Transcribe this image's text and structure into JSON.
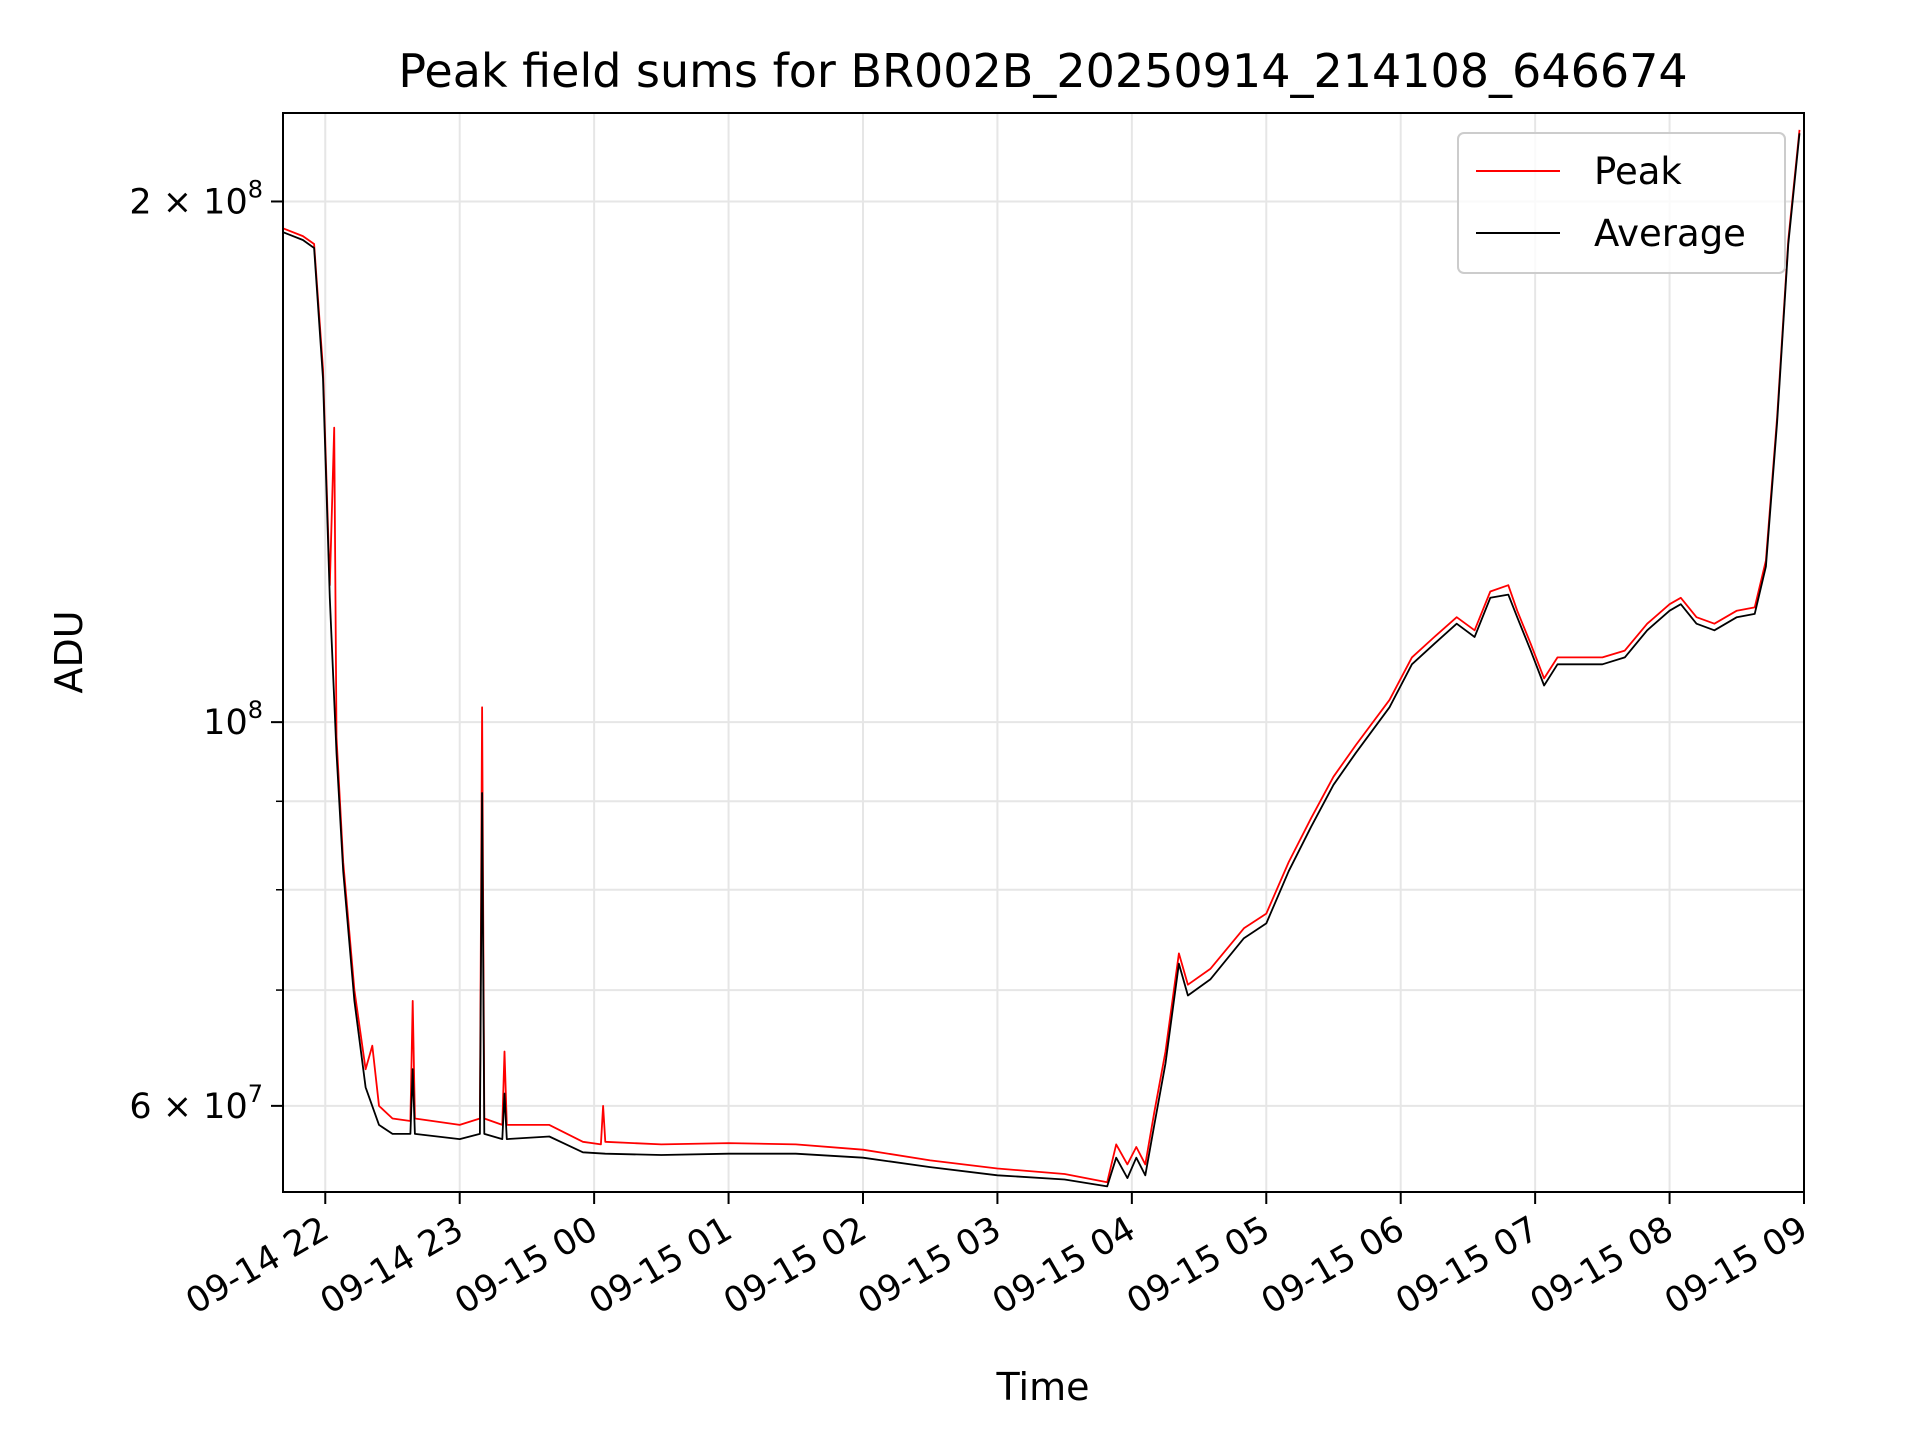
{
  "chart_data": {
    "type": "line",
    "title": "Peak field sums for BR002B_20250914_214108_646674",
    "xlabel": "Time",
    "ylabel": "ADU",
    "y_scale": "log",
    "grid": true,
    "legend_position": "top-right",
    "x_range": [
      "2025-09-14T21:41:08",
      "2025-09-15T09:00:00"
    ],
    "ylim": [
      53500000,
      225000000
    ],
    "x_ticks": [
      {
        "t": "2025-09-14T22:00",
        "label": "09-14 22"
      },
      {
        "t": "2025-09-14T23:00",
        "label": "09-14 23"
      },
      {
        "t": "2025-09-15T00:00",
        "label": "09-15 00"
      },
      {
        "t": "2025-09-15T01:00",
        "label": "09-15 01"
      },
      {
        "t": "2025-09-15T02:00",
        "label": "09-15 02"
      },
      {
        "t": "2025-09-15T03:00",
        "label": "09-15 03"
      },
      {
        "t": "2025-09-15T04:00",
        "label": "09-15 04"
      },
      {
        "t": "2025-09-15T05:00",
        "label": "09-15 05"
      },
      {
        "t": "2025-09-15T06:00",
        "label": "09-15 06"
      },
      {
        "t": "2025-09-15T07:00",
        "label": "09-15 07"
      },
      {
        "t": "2025-09-15T08:00",
        "label": "09-15 08"
      },
      {
        "t": "2025-09-15T09:00",
        "label": "09-15 09"
      }
    ],
    "y_major_ticks": [
      {
        "value": 60000000,
        "mantissa": "6",
        "exp": "7"
      },
      {
        "value": 100000000,
        "mantissa": "",
        "exp": "8"
      },
      {
        "value": 200000000,
        "mantissa": "2",
        "exp": "8"
      }
    ],
    "y_minor_ticks": [
      70000000,
      80000000,
      90000000
    ],
    "series": [
      {
        "name": "Peak",
        "color": "#ff0000",
        "points": [
          [
            "2025-09-14T21:41",
            193000000.0
          ],
          [
            "2025-09-14T21:50",
            191000000.0
          ],
          [
            "2025-09-14T21:55",
            189000000.0
          ],
          [
            "2025-09-14T21:59",
            160000000.0
          ],
          [
            "2025-09-14T22:02",
            120000000.0
          ],
          [
            "2025-09-14T22:04",
            148000000.0
          ],
          [
            "2025-09-14T22:05",
            98000000.0
          ],
          [
            "2025-09-14T22:08",
            83000000.0
          ],
          [
            "2025-09-14T22:13",
            70000000.0
          ],
          [
            "2025-09-14T22:18",
            63000000.0
          ],
          [
            "2025-09-14T22:21",
            65000000.0
          ],
          [
            "2025-09-14T22:24",
            60000000.0
          ],
          [
            "2025-09-14T22:30",
            59000000.0
          ],
          [
            "2025-09-14T22:38",
            58800000.0
          ],
          [
            "2025-09-14T22:39",
            69000000.0
          ],
          [
            "2025-09-14T22:40",
            59000000.0
          ],
          [
            "2025-09-14T23:00",
            58500000.0
          ],
          [
            "2025-09-14T23:09",
            59000000.0
          ],
          [
            "2025-09-14T23:10",
            102000000.0
          ],
          [
            "2025-09-14T23:11",
            59000000.0
          ],
          [
            "2025-09-14T23:19",
            58500000.0
          ],
          [
            "2025-09-14T23:20",
            64500000.0
          ],
          [
            "2025-09-14T23:21",
            58500000.0
          ],
          [
            "2025-09-14T23:40",
            58500000.0
          ],
          [
            "2025-09-14T23:55",
            57200000.0
          ],
          [
            "2025-09-15T00:03",
            57000000.0
          ],
          [
            "2025-09-15T00:04",
            60000000.0
          ],
          [
            "2025-09-15T00:05",
            57200000.0
          ],
          [
            "2025-09-15T00:30",
            57000000.0
          ],
          [
            "2025-09-15T01:00",
            57100000.0
          ],
          [
            "2025-09-15T01:30",
            57000000.0
          ],
          [
            "2025-09-15T02:00",
            56600000.0
          ],
          [
            "2025-09-15T02:30",
            55800000.0
          ],
          [
            "2025-09-15T03:00",
            55200000.0
          ],
          [
            "2025-09-15T03:30",
            54800000.0
          ],
          [
            "2025-09-15T03:49",
            54200000.0
          ],
          [
            "2025-09-15T03:53",
            57000000.0
          ],
          [
            "2025-09-15T03:58",
            55500000.0
          ],
          [
            "2025-09-15T04:02",
            56800000.0
          ],
          [
            "2025-09-15T04:06",
            55500000.0
          ],
          [
            "2025-09-15T04:10",
            59500000.0
          ],
          [
            "2025-09-15T04:15",
            64500000.0
          ],
          [
            "2025-09-15T04:21",
            73500000.0
          ],
          [
            "2025-09-15T04:25",
            70500000.0
          ],
          [
            "2025-09-15T04:35",
            72000000.0
          ],
          [
            "2025-09-15T04:50",
            76000000.0
          ],
          [
            "2025-09-15T05:00",
            77500000.0
          ],
          [
            "2025-09-15T05:10",
            83000000.0
          ],
          [
            "2025-09-15T05:20",
            88000000.0
          ],
          [
            "2025-09-15T05:30",
            93000000.0
          ],
          [
            "2025-09-15T05:40",
            97000000.0
          ],
          [
            "2025-09-15T05:55",
            103000000.0
          ],
          [
            "2025-09-15T06:05",
            109000000.0
          ],
          [
            "2025-09-15T06:15",
            112000000.0
          ],
          [
            "2025-09-15T06:25",
            115000000.0
          ],
          [
            "2025-09-15T06:33",
            113000000.0
          ],
          [
            "2025-09-15T06:40",
            119000000.0
          ],
          [
            "2025-09-15T06:48",
            120000000.0
          ],
          [
            "2025-09-15T06:52",
            116000000.0
          ],
          [
            "2025-09-15T06:58",
            111000000.0
          ],
          [
            "2025-09-15T07:04",
            106000000.0
          ],
          [
            "2025-09-15T07:10",
            109000000.0
          ],
          [
            "2025-09-15T07:20",
            109000000.0
          ],
          [
            "2025-09-15T07:30",
            109000000.0
          ],
          [
            "2025-09-15T07:40",
            110000000.0
          ],
          [
            "2025-09-15T07:50",
            114000000.0
          ],
          [
            "2025-09-15T08:00",
            117000000.0
          ],
          [
            "2025-09-15T08:05",
            118000000.0
          ],
          [
            "2025-09-15T08:12",
            115000000.0
          ],
          [
            "2025-09-15T08:20",
            114000000.0
          ],
          [
            "2025-09-15T08:30",
            116000000.0
          ],
          [
            "2025-09-15T08:38",
            116500000.0
          ],
          [
            "2025-09-15T08:43",
            124000000.0
          ],
          [
            "2025-09-15T08:48",
            150000000.0
          ],
          [
            "2025-09-15T08:53",
            190000000.0
          ],
          [
            "2025-09-15T08:58",
            220000000.0
          ]
        ]
      },
      {
        "name": "Average",
        "color": "#000000",
        "points": [
          [
            "2025-09-14T21:41",
            192000000.0
          ],
          [
            "2025-09-14T21:50",
            190000000.0
          ],
          [
            "2025-09-14T21:55",
            188000000.0
          ],
          [
            "2025-09-14T21:59",
            158000000.0
          ],
          [
            "2025-09-14T22:02",
            118000000.0
          ],
          [
            "2025-09-14T22:05",
            96000000.0
          ],
          [
            "2025-09-14T22:08",
            82000000.0
          ],
          [
            "2025-09-14T22:13",
            69000000.0
          ],
          [
            "2025-09-14T22:18",
            61500000.0
          ],
          [
            "2025-09-14T22:24",
            58500000.0
          ],
          [
            "2025-09-14T22:30",
            57800000.0
          ],
          [
            "2025-09-14T22:38",
            57800000.0
          ],
          [
            "2025-09-14T22:39",
            63000000.0
          ],
          [
            "2025-09-14T22:40",
            57800000.0
          ],
          [
            "2025-09-14T23:00",
            57400000.0
          ],
          [
            "2025-09-14T23:09",
            57800000.0
          ],
          [
            "2025-09-14T23:10",
            91000000.0
          ],
          [
            "2025-09-14T23:11",
            57800000.0
          ],
          [
            "2025-09-14T23:19",
            57400000.0
          ],
          [
            "2025-09-14T23:20",
            61000000.0
          ],
          [
            "2025-09-14T23:21",
            57400000.0
          ],
          [
            "2025-09-14T23:40",
            57600000.0
          ],
          [
            "2025-09-14T23:55",
            56400000.0
          ],
          [
            "2025-09-15T00:05",
            56300000.0
          ],
          [
            "2025-09-15T00:30",
            56200000.0
          ],
          [
            "2025-09-15T01:00",
            56300000.0
          ],
          [
            "2025-09-15T01:30",
            56300000.0
          ],
          [
            "2025-09-15T02:00",
            56000000.0
          ],
          [
            "2025-09-15T02:30",
            55300000.0
          ],
          [
            "2025-09-15T03:00",
            54700000.0
          ],
          [
            "2025-09-15T03:30",
            54400000.0
          ],
          [
            "2025-09-15T03:49",
            53900000.0
          ],
          [
            "2025-09-15T03:53",
            56000000.0
          ],
          [
            "2025-09-15T03:58",
            54500000.0
          ],
          [
            "2025-09-15T04:02",
            56000000.0
          ],
          [
            "2025-09-15T04:06",
            54700000.0
          ],
          [
            "2025-09-15T04:10",
            58500000.0
          ],
          [
            "2025-09-15T04:15",
            63500000.0
          ],
          [
            "2025-09-15T04:21",
            72500000.0
          ],
          [
            "2025-09-15T04:25",
            69500000.0
          ],
          [
            "2025-09-15T04:35",
            71000000.0
          ],
          [
            "2025-09-15T04:50",
            75000000.0
          ],
          [
            "2025-09-15T05:00",
            76500000.0
          ],
          [
            "2025-09-15T05:10",
            82000000.0
          ],
          [
            "2025-09-15T05:20",
            87000000.0
          ],
          [
            "2025-09-15T05:30",
            92000000.0
          ],
          [
            "2025-09-15T05:40",
            96000000.0
          ],
          [
            "2025-09-15T05:55",
            102000000.0
          ],
          [
            "2025-09-15T06:05",
            108000000.0
          ],
          [
            "2025-09-15T06:15",
            111000000.0
          ],
          [
            "2025-09-15T06:25",
            114000000.0
          ],
          [
            "2025-09-15T06:33",
            112000000.0
          ],
          [
            "2025-09-15T06:40",
            118000000.0
          ],
          [
            "2025-09-15T06:48",
            118500000.0
          ],
          [
            "2025-09-15T06:52",
            115000000.0
          ],
          [
            "2025-09-15T06:58",
            110000000.0
          ],
          [
            "2025-09-15T07:04",
            105000000.0
          ],
          [
            "2025-09-15T07:10",
            108000000.0
          ],
          [
            "2025-09-15T07:20",
            108000000.0
          ],
          [
            "2025-09-15T07:30",
            108000000.0
          ],
          [
            "2025-09-15T07:40",
            109000000.0
          ],
          [
            "2025-09-15T07:50",
            113000000.0
          ],
          [
            "2025-09-15T08:00",
            116000000.0
          ],
          [
            "2025-09-15T08:05",
            117000000.0
          ],
          [
            "2025-09-15T08:12",
            114000000.0
          ],
          [
            "2025-09-15T08:20",
            113000000.0
          ],
          [
            "2025-09-15T08:30",
            115000000.0
          ],
          [
            "2025-09-15T08:38",
            115500000.0
          ],
          [
            "2025-09-15T08:43",
            123000000.0
          ],
          [
            "2025-09-15T08:48",
            149000000.0
          ],
          [
            "2025-09-15T08:53",
            189000000.0
          ],
          [
            "2025-09-15T08:58",
            219000000.0
          ]
        ]
      }
    ]
  }
}
